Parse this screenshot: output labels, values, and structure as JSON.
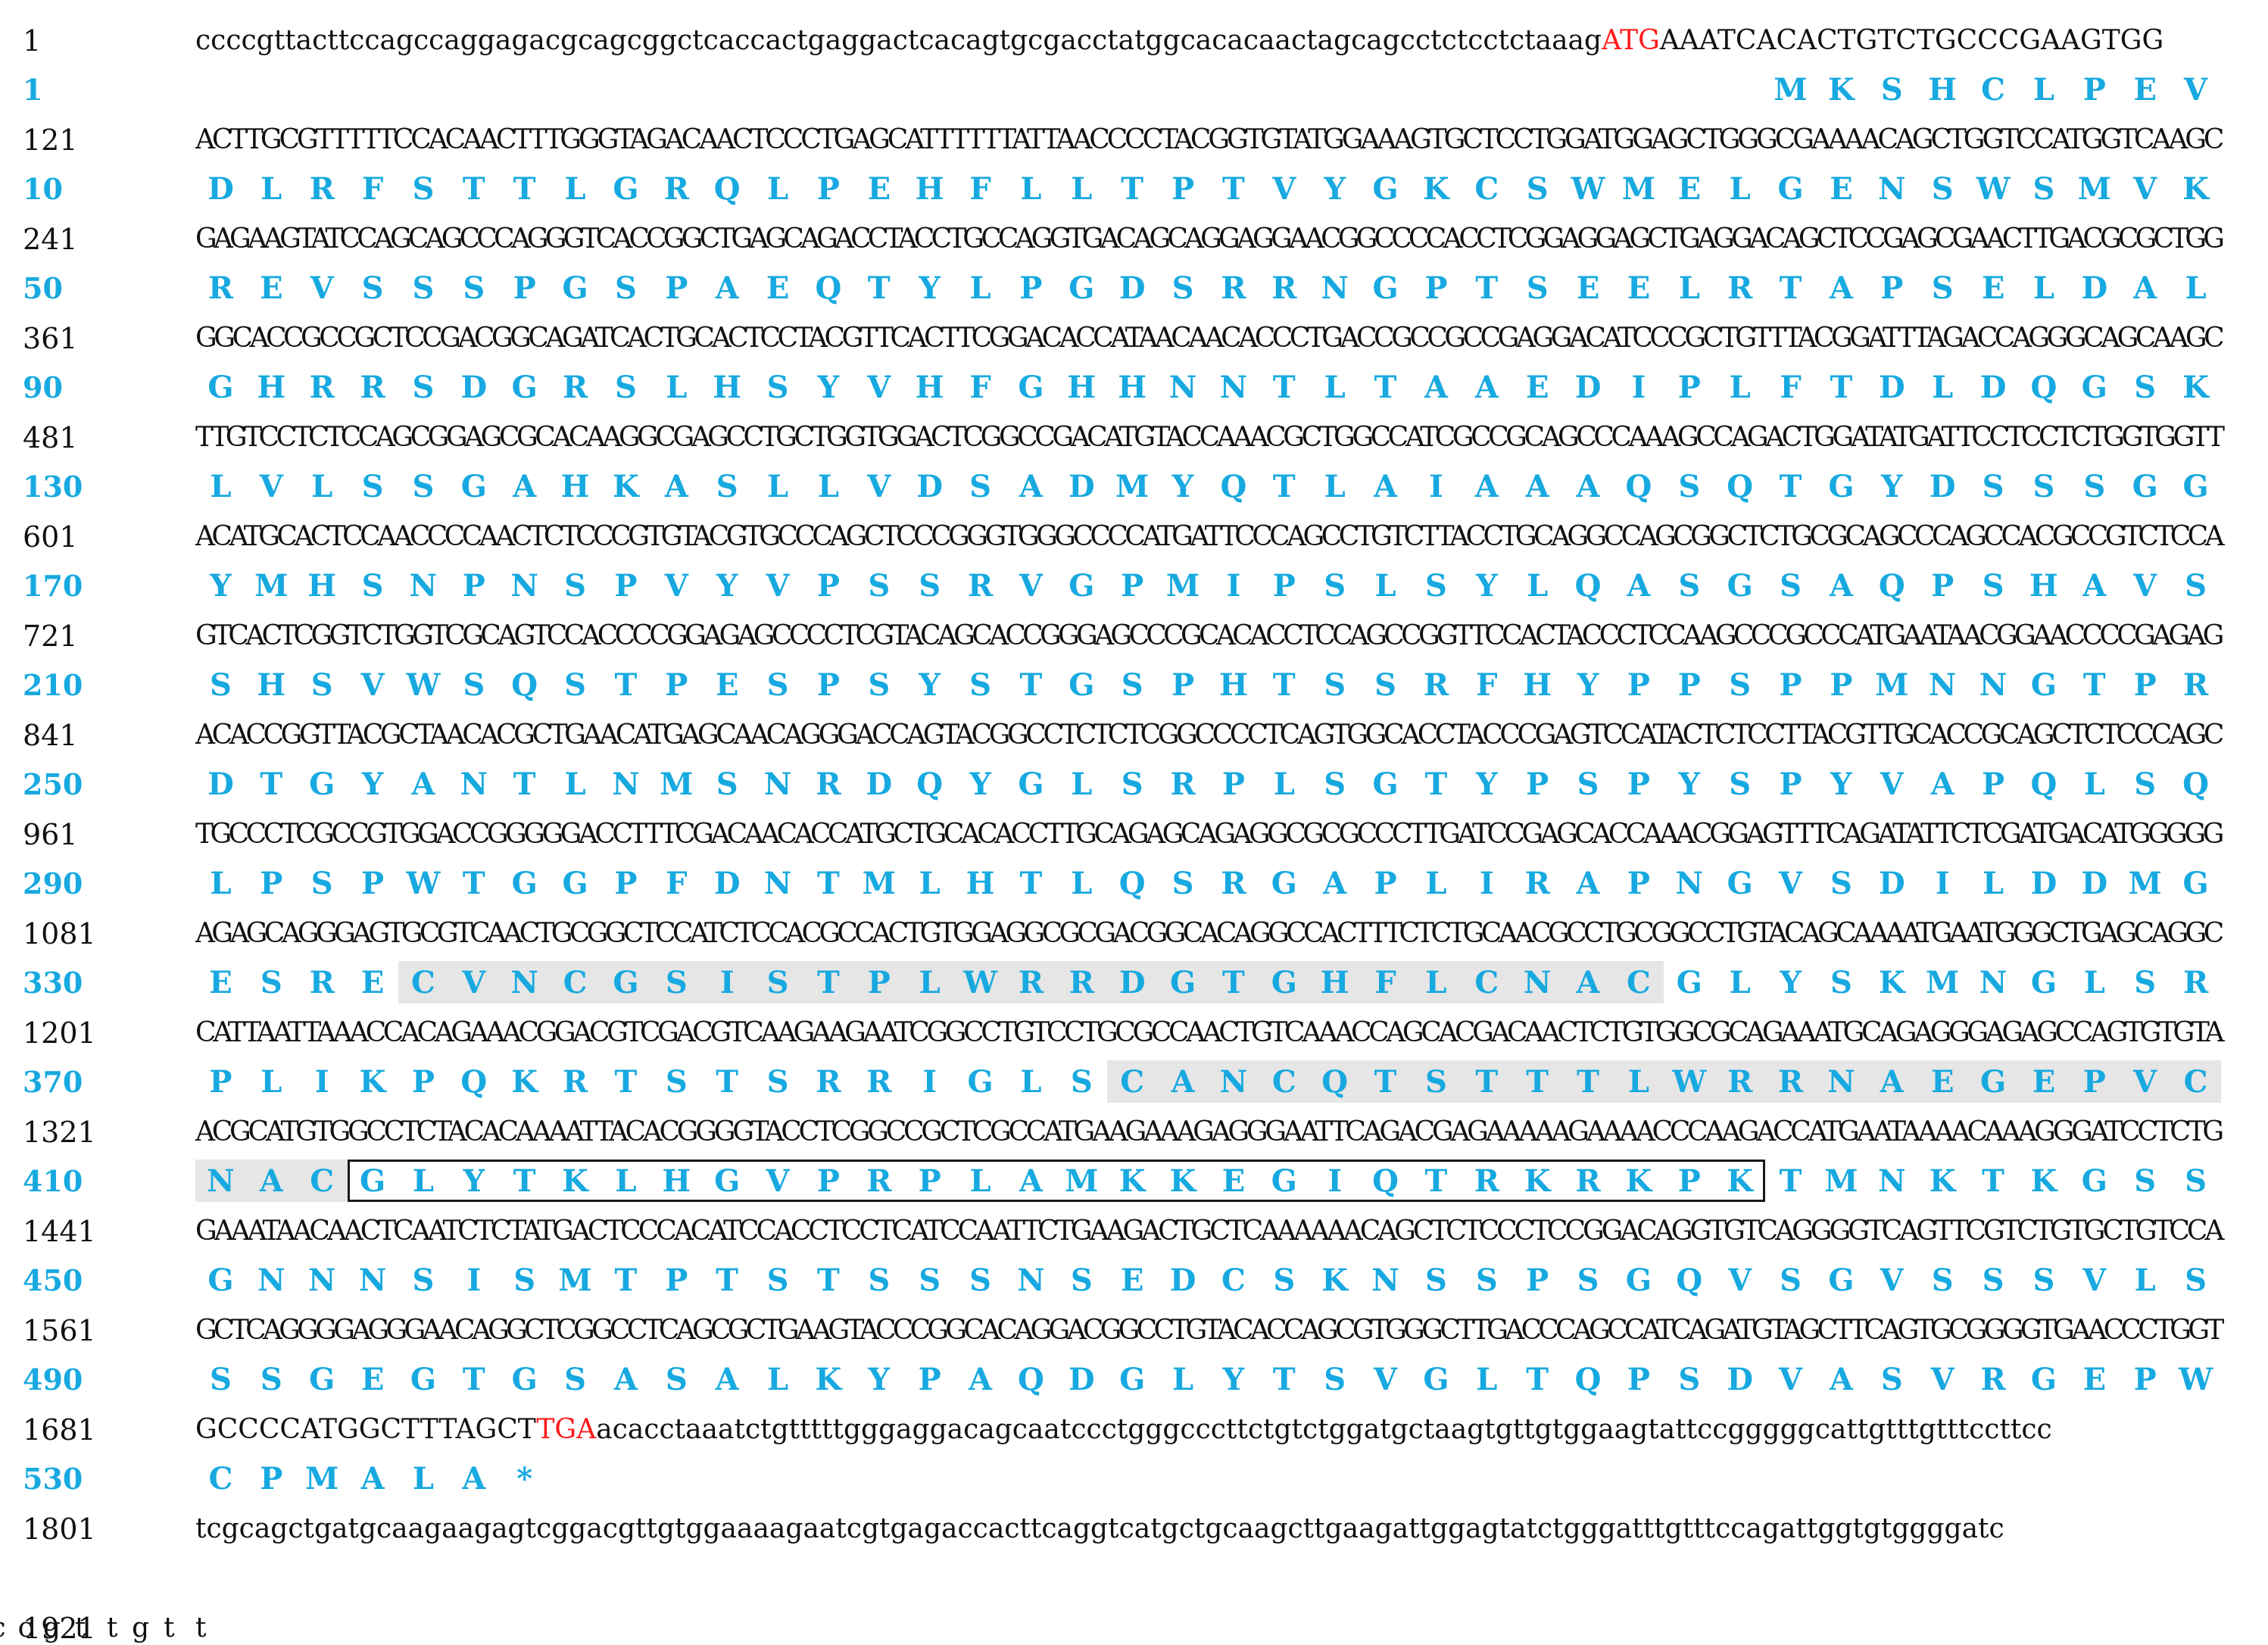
{
  "rows": [
    {
      "n": "1",
      "p": "1",
      "nt": [
        {
          "t": "ccccgttacttccagccaggagacgcagcggctcaccactgaggactcacagtgcgacctatggcacacaactagcagcctctcctctaaag"
        },
        {
          "t": "ATG",
          "c": "red"
        },
        {
          "t": "AAATCACACTGTCTGCCCGAAGTGG"
        }
      ],
      "aa": "MKSHCLPEV"
    },
    {
      "n": "121",
      "p": "10",
      "nt": [
        {
          "t": "ACTTGCGTTTTTCCACAACTTTGGGTAGACAACTCCCTGAGCATTTTTTATTAACCCCTACGGTGTATGGAAAGTGCTCCTGGATGGAGCTGGGCGAAAACAGCTGGTCCATGGTCAAGC"
        }
      ],
      "aa": "DLRFSTTLGRQLPEHFLLTPTVYGKCSWMELGENSWSMVK"
    },
    {
      "n": "241",
      "p": "50",
      "nt": [
        {
          "t": "GAGAAGTATCCAGCAGCCCAGGGTCACCGGCTGAGCAGACCTACCTGCCAGGTGACAGCAGGAGGAACGGCCCCACCTCGGAGGAGCTGAGGACAGCTCCGAGCGAACTTGACGCGCTGG"
        }
      ],
      "aa": "REVSSSPGSPAEQTYLPGDSRRNGPTSEELRTAPSELDAL"
    },
    {
      "n": "361",
      "p": "90",
      "nt": [
        {
          "t": "GGCACCGCCGCTCCGACGGCAGATCACTGCACTCCTACGTTCACTTCGGACACCATAACAACACCCTGACCGCCGCCGAGGACATCCCGCTGTTTACGGATTTAGACCAGGGCAGCAAGC"
        }
      ],
      "aa": "GHRRSDGRSLHSYVHFGHHNNTLTAAEDIPLFTDLDQGSK"
    },
    {
      "n": "481",
      "p": "130",
      "nt": [
        {
          "t": "TTGTCCTCTCCAGCGGAGCGCACAAGGCGAGCCTGCTGGTGGACTCGGCCGACATGTACCAAACGCTGGCCATCGCCGCAGCCCAAAGCCAGACTGGATATGATTCCTCCTCTGGTGGTT"
        }
      ],
      "aa": "LVLSSGAHKASLLVDSADMYQTLAIAAAQSQTGYDSSSGG"
    },
    {
      "n": "601",
      "p": "170",
      "nt": [
        {
          "t": "ACATGCACTCCAACCCCAACTCTCCCGTGTACGTGCCCAGCTCCCGGGTGGGCCCCATGATTCCCAGCCTGTCTTACCTGCAGGCCAGCGGCTCTGCGCAGCCCAGCCACGCCGTCTCCA"
        }
      ],
      "aa": "YMHSNPNSPVYVPSSRVGPMIPSLSYLQASGSAQPSHAVS"
    },
    {
      "n": "721",
      "p": "210",
      "nt": [
        {
          "t": "GTCACTCGGTCTGGTCGCAGTCCACCCCGGAGAGCCCCTCGTACAGCACCGGGAGCCCGCACACCTCCAGCCGGTTCCACTACCCTCCAAGCCCGCCCATGAATAACGGAACCCCGAGAG"
        }
      ],
      "aa": "SHSVWSQSTPESPSYSTGSPHTSSRFHYPPSPPMNNGTPR"
    },
    {
      "n": "841",
      "p": "250",
      "nt": [
        {
          "t": "ACACCGGTTACGCTAACACGCTGAACATGAGCAACAGGGACCAGTACGGCCTCTCTCGGCCCCTCAGTGGCACCTACCCGAGTCCATACTCTCCTTACGTTGCACCGCAGCTCTCCCAGC"
        }
      ],
      "aa": "DTGYANTLNMSNRDQYGLSRPLSGTYPSPYSPYVAPQLSQ"
    },
    {
      "n": "961",
      "p": "290",
      "nt": [
        {
          "t": "TGCCCTCGCCGTGGACCGGGGGACCTTTCGACAACACCATGCTGCACACCTTGCAGAGCAGAGGCGCGCCCTTGATCCGAGCACCAAACGGAGTTTCAGATATTCTCGATGACATGGGGG"
        }
      ],
      "aa": "LPSPWTGGPFDNTMLHTLQSRGAPLIRAPNGVSDILDDMG"
    },
    {
      "n": "1081",
      "p": "330",
      "nt": [
        {
          "t": "AGAGCAGGGAGTGCGTCAACTGCGGCTCCATCTCCACGCCACTGTGGAGGCGCGACGGCACAGGCCACTTTCTCTGCAACGCCTGCGGCCTGTACAGCAAAATGAATGGGCTGAGCAGGC"
        }
      ],
      "aa": "ESRECVNCGSISTPLWRRDGTGHFLCNACGLYSKMNGLSR"
    },
    {
      "n": "1201",
      "p": "370",
      "nt": [
        {
          "t": "CATTAATTAAACCACAGAAACGGACGTCGACGTCAAGAAGAATCGGCCTGTCCTGCGCCAACTGTCAAACCAGCACGACAACTCTGTGGCGCAGAAATGCAGAGGGAGAGCCAGTGTGTA"
        }
      ],
      "aa": "PLIKPQKRTSTSRRIGLSCANCQTSTTTLWRRNAEGEPVC"
    },
    {
      "n": "1321",
      "p": "410",
      "nt": [
        {
          "t": "ACGCATGTGGCCTCTACACAAAATTACACGGGGTACCTCGGCCGCTCGCCATGAAGAAAGAGGGAATTCAGACGAGAAAAAGAAAACCCAAGACCATGAATAAAACAAAGGGATCCTCTG"
        }
      ],
      "aa": "NACGLYTKLHGVPRPLAMKKEGIQTRKRKPKTMNKTKGSS"
    },
    {
      "n": "1441",
      "p": "450",
      "nt": [
        {
          "t": "GAAATAACAACTCAATCTCTATGACTCCCACATCCACCTCCTCATCCAATTCTGAAGACTGCTCAAAAAACAGCTCTCCCTCCGGACAGGTGTCAGGGGTCAGTTCGTCTGTGCTGTCCA"
        }
      ],
      "aa": "GNNNSISMTPTSTSSSNSEDCSKNSSPSGQVSGVSSSVLS"
    },
    {
      "n": "1561",
      "p": "490",
      "nt": [
        {
          "t": "GCTCAGGGGAGGGAACAGGCTCGGCCTCAGCGCTGAAGTACCCGGCACAGGACGGCCTGTACACCAGCGTGGGCTTGACCCAGCCATCAGATGTAGCTTCAGTGCGGGGTGAACCCTGGT"
        }
      ],
      "aa": "SSGEGTGSASALKYPAQDGLYTSVGLTQPSDVASVRGEPW"
    },
    {
      "n": "1681",
      "p": "530",
      "nt": [
        {
          "t": "GCCCCATGGCTTTAGCT"
        },
        {
          "t": "TGA",
          "c": "red"
        },
        {
          "t": "acacctaaatctgtttttgggaggacagcaatccctgggcccttctgtctggatgctaagtgttgtggaagtattccgggggcattgtttgtttccttcc"
        }
      ],
      "aa": "CPMALA*"
    },
    {
      "n": "1801",
      "nt": [
        {
          "t": "tcgcagctgatgcaagaagagtcggacgttgtggaaaagaatcgtgagaccacttcaggtcatgctgcaagcttgaagattggagtatctgggatttgtttccagattggtgtggggatc"
        }
      ]
    },
    {
      "n": "1921",
      "nt": [
        {
          "t": "ttgttgcctaaaaaaaaaaaaaaaaaaaaaaaaa"
        }
      ]
    }
  ]
}
